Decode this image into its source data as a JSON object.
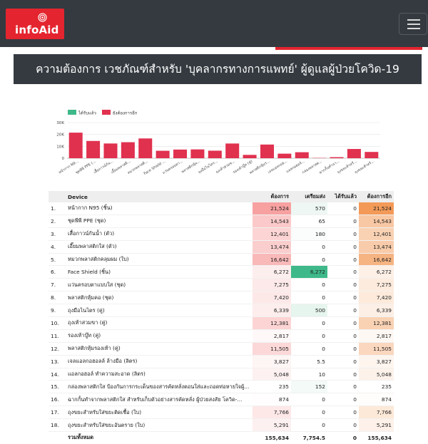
{
  "header": {
    "logo_text": "infoAid",
    "menu_icon": "hamburger-menu-icon"
  },
  "page_title": "ความต้องการ เวชภัณฑ์สำหรับ 'บุคลากรทางการแพทย์' ผู้ดูแลผู้ป่วยโควิด-19",
  "colors": {
    "header_bg": "#343a40",
    "brand_red": "#e4252f",
    "received_green": "#3fb98a",
    "still_needed_red": "#e0314f",
    "orange_high": "#f39a58"
  },
  "chart_data": {
    "type": "bar",
    "legend_position": "top-left",
    "series": [
      {
        "name": "ได้รับแล้ว",
        "color": "#3fb98a",
        "values": [
          0,
          0,
          0,
          0,
          0,
          0,
          0,
          0,
          0,
          0,
          0,
          0,
          0,
          0,
          0,
          0,
          0,
          0
        ]
      },
      {
        "name": "ยังต้องการอีก",
        "color": "#e0314f",
        "values": [
          21524,
          14543,
          12401,
          13474,
          16642,
          6272,
          7275,
          7420,
          6339,
          12381,
          2817,
          11505,
          3827,
          5048,
          235,
          874,
          7766,
          5291
        ]
      }
    ],
    "categories": [
      "หน้ากาก N9...",
      "ชุดพีพี PPE (...",
      "เสื้อกาวน์กัน...",
      "เอี๊ยมพลาสติ...",
      "หมวกพลาสติ...",
      "Face Shield ...",
      "แว่นครอบตา...",
      "พลาสติกหุ้ม...",
      "ถุงมือไนไตร...",
      "ถุงเท้าสวมข...",
      "รองเท้าบู๊ท (คู่)",
      "พลาสติกหุ้มร...",
      "เจลแอลกอฮ...",
      "แอลกอฮอล์...",
      "กล่องพลาสต...",
      "ฉากกั้นทำจา...",
      "ถุงขยะสำหรั...",
      "ถุงขยะสำหรั..."
    ],
    "yticks": [
      "0",
      "10K",
      "20K",
      "30K"
    ],
    "ylim": [
      0,
      30000
    ],
    "grid": true,
    "xlabel": "",
    "ylabel": ""
  },
  "table": {
    "columns": [
      "",
      "Device",
      "ต้องการ",
      "เตรียมส่ง",
      "ได้รับแล้ว",
      "ต้องการอีก"
    ],
    "rows": [
      {
        "idx": "1.",
        "device": "หน้ากาก N95 (ชิ้น)",
        "need": "21,524",
        "prep": "570",
        "recv": "0",
        "more": "21,524",
        "need_bg": "#f8a1a1",
        "prep_bg": "#eef7f3",
        "more_bg": "#f39a58"
      },
      {
        "idx": "2.",
        "device": "ชุดพีพี PPE (ชุด)",
        "need": "14,543",
        "prep": "65",
        "recv": "0",
        "more": "14,543",
        "need_bg": "#fbc9c9",
        "prep_bg": "#ffffff",
        "more_bg": "#f8c7a3"
      },
      {
        "idx": "3.",
        "device": "เสื้อกาวน์กันน้ำ (ตัว)",
        "need": "12,401",
        "prep": "180",
        "recv": "0",
        "more": "12,401",
        "need_bg": "#fcd4d4",
        "prep_bg": "#fafdfc",
        "more_bg": "#f9d2b4"
      },
      {
        "idx": "4.",
        "device": "เอี๊ยมพลาสติกใส (ตัว)",
        "need": "13,474",
        "prep": "0",
        "recv": "0",
        "more": "13,474",
        "need_bg": "#fbcece",
        "prep_bg": "#ffffff",
        "more_bg": "#f8ccaa"
      },
      {
        "idx": "5.",
        "device": "หมวกพลาสติกคลุมผม (ใบ)",
        "need": "16,642",
        "prep": "0",
        "recv": "0",
        "more": "16,642",
        "need_bg": "#f9b9b9",
        "prep_bg": "#ffffff",
        "more_bg": "#f6b482"
      },
      {
        "idx": "6.",
        "device": "Face Shield (ชิ้น)",
        "need": "6,272",
        "prep": "6,272",
        "recv": "0",
        "more": "6,272",
        "need_bg": "#fdeeee",
        "prep_bg": "#3fb98a",
        "more_bg": "#fdf0e6"
      },
      {
        "idx": "7.",
        "device": "แว่นครอบตาแบบใส (ชุด)",
        "need": "7,275",
        "prep": "0",
        "recv": "0",
        "more": "7,275",
        "need_bg": "#fde9e9",
        "prep_bg": "#ffffff",
        "more_bg": "#fdebdd"
      },
      {
        "idx": "8.",
        "device": "พลาสติกหุ้มคอ (ชุด)",
        "need": "7,420",
        "prep": "0",
        "recv": "0",
        "more": "7,420",
        "need_bg": "#fde8e8",
        "prep_bg": "#ffffff",
        "more_bg": "#fdeadb"
      },
      {
        "idx": "9.",
        "device": "ถุงมือไนไตร (คู่)",
        "need": "6,339",
        "prep": "500",
        "recv": "0",
        "more": "6,339",
        "need_bg": "#fdeded",
        "prep_bg": "#e6f5ee",
        "more_bg": "#fdefe5"
      },
      {
        "idx": "10.",
        "device": "ถุงเท้าสวมขา (คู่)",
        "need": "12,381",
        "prep": "0",
        "recv": "0",
        "more": "12,381",
        "need_bg": "#fcd4d4",
        "prep_bg": "#ffffff",
        "more_bg": "#f9d2b4"
      },
      {
        "idx": "11.",
        "device": "รองเท้าบู๊ท (คู่)",
        "need": "2,817",
        "prep": "0",
        "recv": "0",
        "more": "2,817",
        "need_bg": "#fef8f8",
        "prep_bg": "#ffffff",
        "more_bg": "#fef8f4"
      },
      {
        "idx": "12.",
        "device": "พลาสติกหุ้มรองเท้า (คู่)",
        "need": "11,505",
        "prep": "0",
        "recv": "0",
        "more": "11,505",
        "need_bg": "#fcd8d8",
        "prep_bg": "#ffffff",
        "more_bg": "#fad7be"
      },
      {
        "idx": "13.",
        "device": "เจลแอลกอฮอลล์ ล้างมือ (ลิตร)",
        "need": "3,827",
        "prep": "5.5",
        "recv": "0",
        "more": "3,827",
        "need_bg": "#fef5f5",
        "prep_bg": "#ffffff",
        "more_bg": "#fef5ef"
      },
      {
        "idx": "14.",
        "device": "แอลกอฮอล์ ทำความสะอาด (ลิตร)",
        "need": "5,048",
        "prep": "10",
        "recv": "0",
        "more": "5,048",
        "need_bg": "#fdf1f1",
        "prep_bg": "#ffffff",
        "more_bg": "#fdf2ea"
      },
      {
        "idx": "15.",
        "device": "กล่องพลาสติกใส ป้องกันการกระเด็นของสารคัดหลั่งตอนใส่และถอดท่อหายใจผู้...",
        "need": "235",
        "prep": "152",
        "recv": "0",
        "more": "235",
        "need_bg": "#ffffff",
        "prep_bg": "#f3faf7",
        "more_bg": "#ffffff"
      },
      {
        "idx": "16.",
        "device": "ฉากกั้นทำจากพลาสติกใส สำหรับเก็บตัวอย่างสารคัดหลั่ง ผู้ป่วยสงสัย โควิด-...",
        "need": "874",
        "prep": "0",
        "recv": "0",
        "more": "874",
        "need_bg": "#fffdfd",
        "prep_bg": "#ffffff",
        "more_bg": "#fffdfc"
      },
      {
        "idx": "17.",
        "device": "ถุงขยะสำหรับใส่ขยะติดเชื้อ (ใบ)",
        "need": "7,766",
        "prep": "0",
        "recv": "0",
        "more": "7,766",
        "need_bg": "#fde7e7",
        "prep_bg": "#ffffff",
        "more_bg": "#fde9d8"
      },
      {
        "idx": "18.",
        "device": "ถุงขยะสำหรับใส่ขยะอันตราย (ใบ)",
        "need": "5,291",
        "prep": "0",
        "recv": "0",
        "more": "5,291",
        "need_bg": "#fdf0f0",
        "prep_bg": "#ffffff",
        "more_bg": "#fdf1e9"
      }
    ],
    "total": {
      "label": "รวมทั้งหมด",
      "need": "155,634",
      "prep": "7,754.5",
      "recv": "0",
      "more": "155,634"
    }
  }
}
